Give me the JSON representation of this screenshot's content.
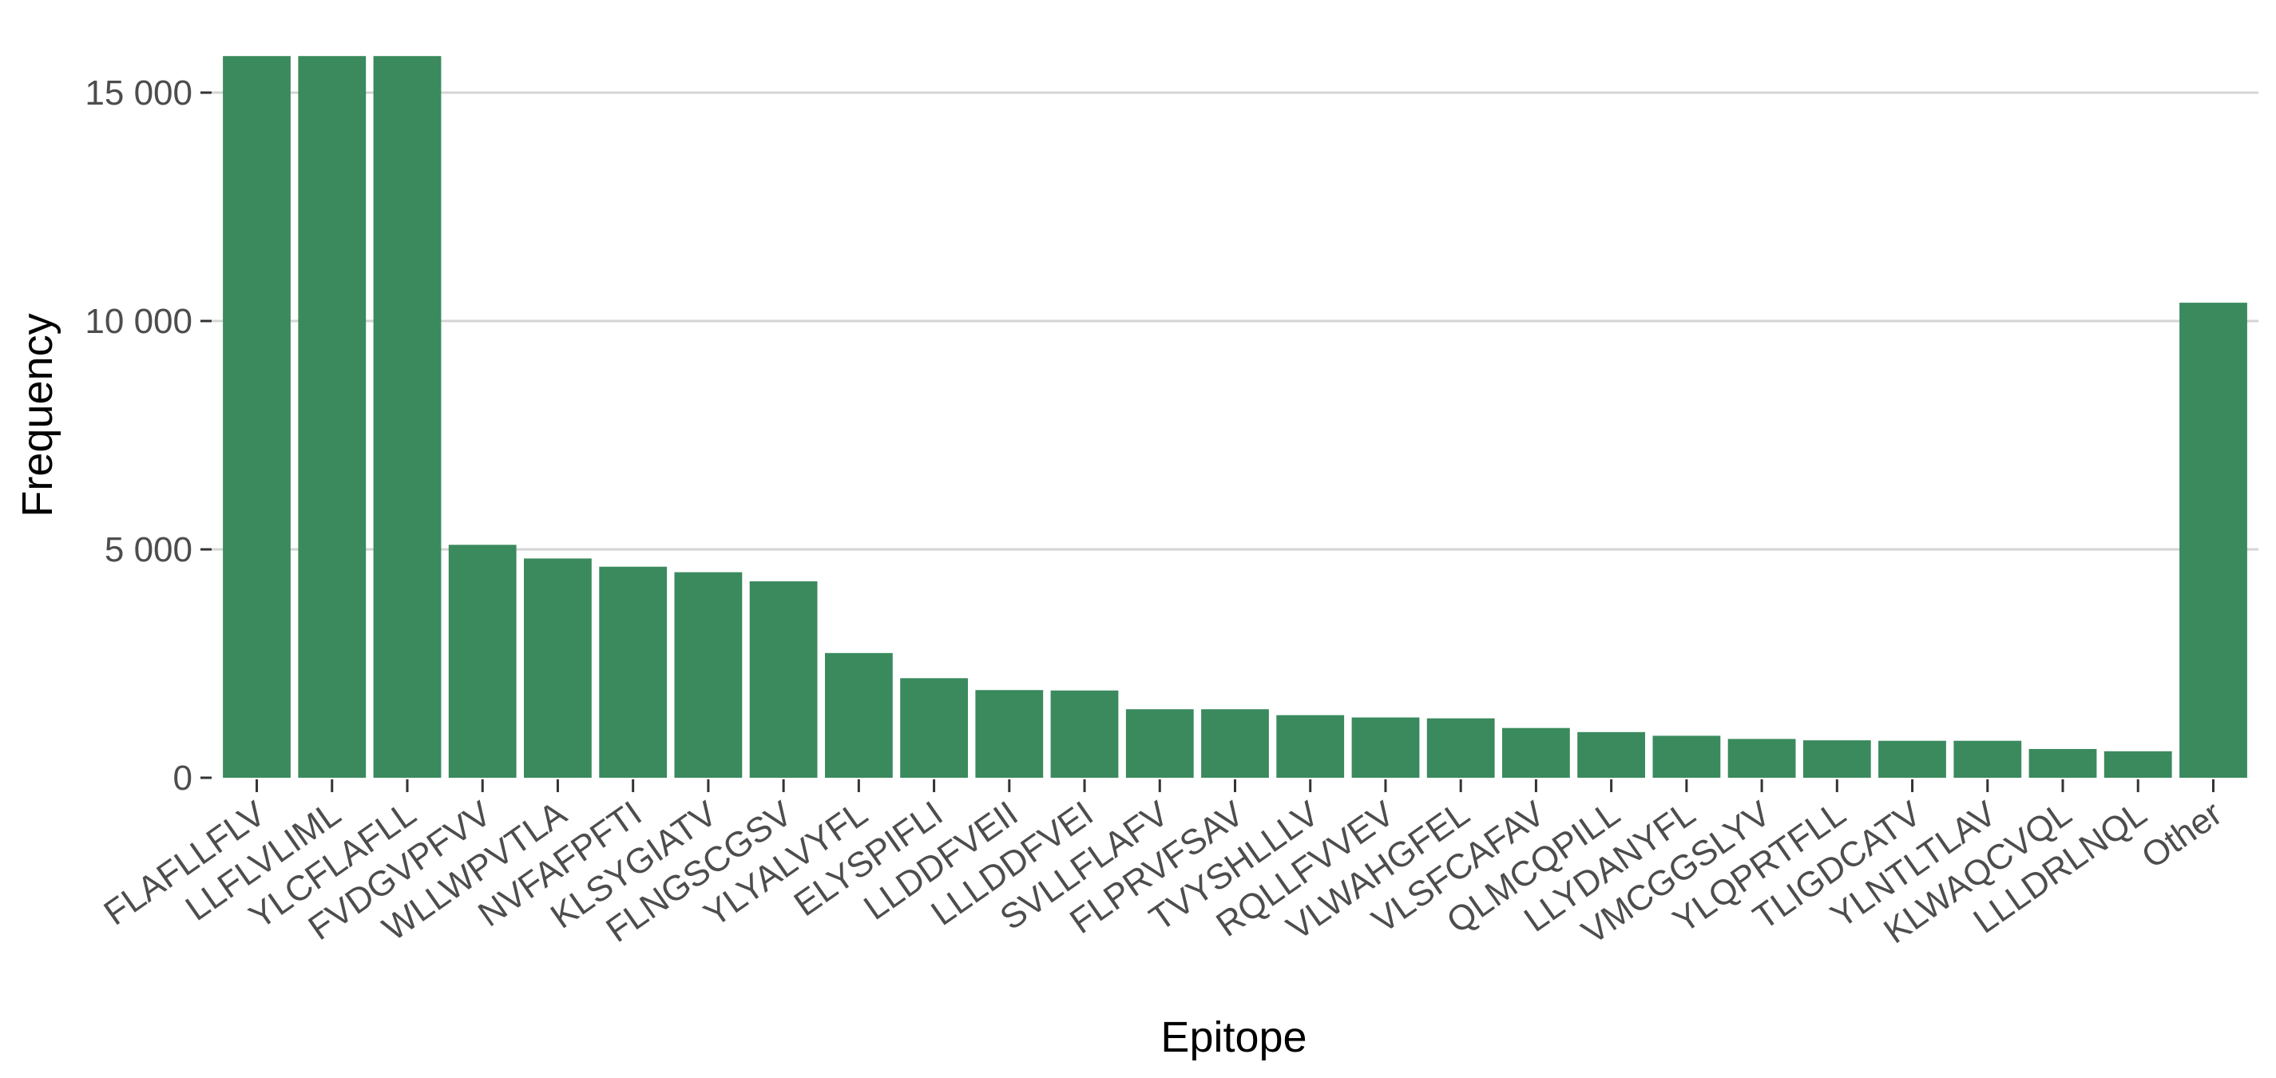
{
  "chart_data": {
    "type": "bar",
    "title": "",
    "xlabel": "Epitope",
    "ylabel": "Frequency",
    "ylim": [
      0,
      15800
    ],
    "yticks": [
      0,
      5000,
      10000,
      15000
    ],
    "ytick_labels": [
      "0",
      "5 000",
      "10 000",
      "15 000"
    ],
    "grid": "horizontal",
    "bar_color": "#3a8a5e",
    "categories": [
      "FLAFLLFLV",
      "LLFLVLIML",
      "YLCFLAFLL",
      "FVDGVPFVV",
      "WLLWPVTLA",
      "NVFAFPFTI",
      "KLSYGIATV",
      "FLNGSCGSV",
      "YLYALVYFL",
      "ELYSPIFLI",
      "LLDDFVEII",
      "LLLDDFVEI",
      "SVLLFLAFV",
      "FLPRVFSAV",
      "TVYSHLLLV",
      "RQLLFVVEV",
      "VLWAHGFEL",
      "VLSFCAFAV",
      "QLMCQPILL",
      "LLYDANYFL",
      "VMCGGSLYV",
      "YLQPRTFLL",
      "TLIGDCATV",
      "YLNTLTLAV",
      "KLWAQCVQL",
      "LLLDRLNQL",
      "Other"
    ],
    "values": [
      15800,
      15800,
      15800,
      5100,
      4800,
      4620,
      4500,
      4300,
      2730,
      2180,
      1920,
      1910,
      1500,
      1500,
      1370,
      1320,
      1300,
      1090,
      1000,
      920,
      850,
      820,
      810,
      810,
      630,
      580,
      10400
    ]
  }
}
